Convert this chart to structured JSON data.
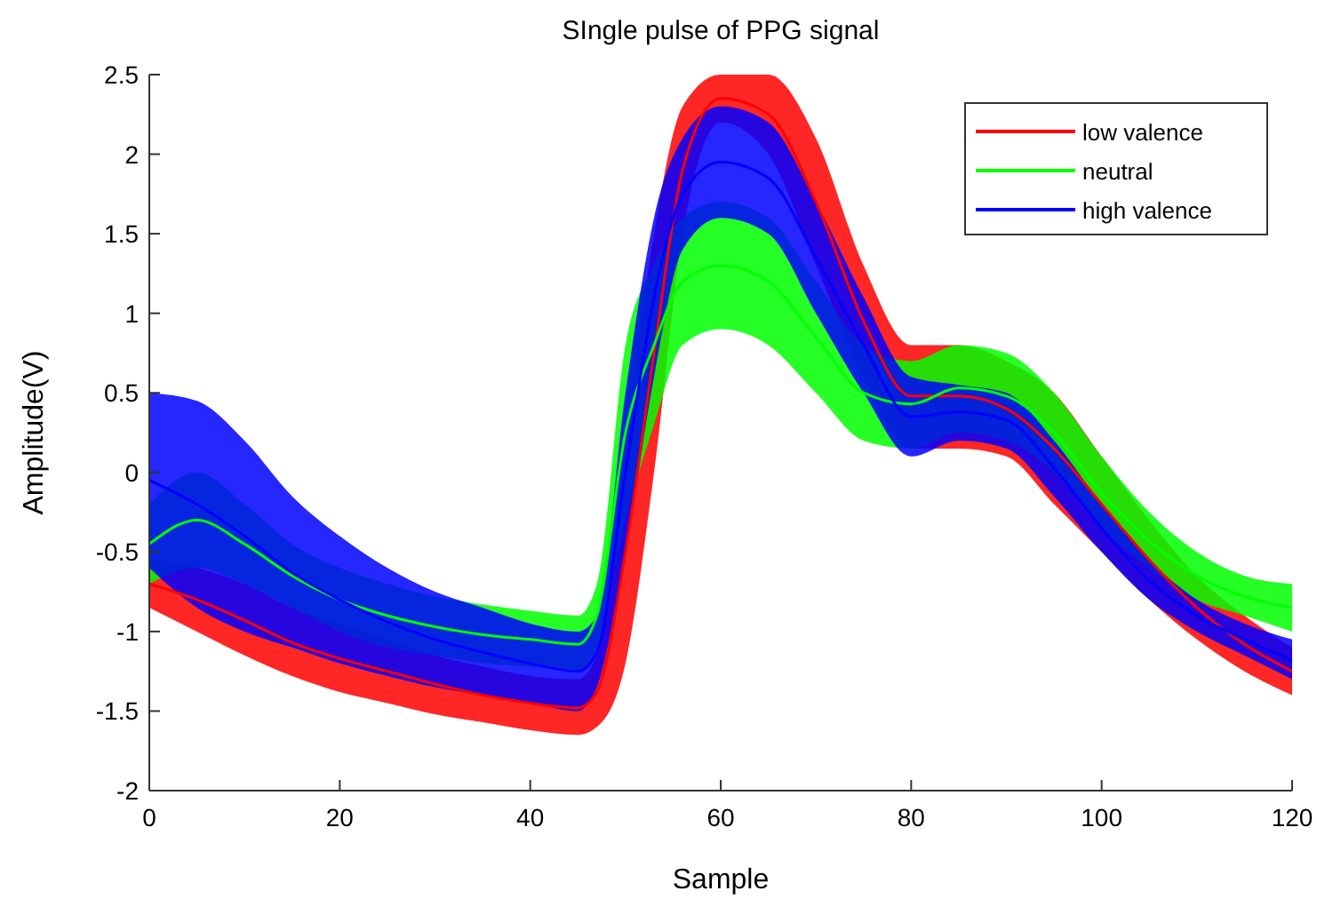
{
  "chart_data": {
    "type": "line",
    "title": "SIngle pulse of PPG signal",
    "xlabel": "Sample",
    "ylabel": "Amplitude(V)",
    "x": [
      0,
      5,
      10,
      15,
      20,
      25,
      30,
      35,
      40,
      45,
      47,
      50,
      53,
      56,
      60,
      65,
      70,
      75,
      80,
      85,
      90,
      95,
      100,
      105,
      110,
      115,
      120
    ],
    "xlim": [
      0,
      120
    ],
    "xticks": [
      0,
      20,
      40,
      60,
      80,
      100,
      120
    ],
    "ylim": [
      -2,
      2.5
    ],
    "yticks": [
      -2,
      -1.5,
      -1,
      -0.5,
      0,
      0.5,
      1,
      1.5,
      2,
      2.5
    ],
    "grid": false,
    "legend": "top right",
    "series": [
      {
        "name": "low valence",
        "color": "#ff0000",
        "values": [
          -0.7,
          -0.8,
          -0.93,
          -1.07,
          -1.17,
          -1.25,
          -1.33,
          -1.4,
          -1.45,
          -1.48,
          -1.38,
          -0.5,
          0.75,
          1.9,
          2.35,
          2.25,
          1.7,
          0.95,
          0.48,
          0.48,
          0.4,
          0.15,
          -0.2,
          -0.55,
          -0.85,
          -1.08,
          -1.25
        ],
        "lower": [
          -0.85,
          -1.0,
          -1.15,
          -1.28,
          -1.38,
          -1.45,
          -1.52,
          -1.57,
          -1.62,
          -1.65,
          -1.6,
          -1.2,
          0.0,
          1.5,
          2.2,
          2.0,
          1.3,
          0.6,
          0.15,
          0.15,
          0.1,
          -0.2,
          -0.5,
          -0.8,
          -1.05,
          -1.25,
          -1.4
        ],
        "upper": [
          -0.55,
          -0.6,
          -0.7,
          -0.85,
          -0.95,
          -1.05,
          -1.15,
          -1.22,
          -1.28,
          -1.3,
          -1.15,
          0.2,
          1.5,
          2.3,
          2.5,
          2.5,
          2.1,
          1.3,
          0.8,
          0.8,
          0.7,
          0.5,
          0.1,
          -0.3,
          -0.65,
          -0.9,
          -1.1
        ]
      },
      {
        "name": "neutral",
        "color": "#00ff00",
        "values": [
          -0.45,
          -0.3,
          -0.45,
          -0.65,
          -0.8,
          -0.9,
          -0.97,
          -1.02,
          -1.05,
          -1.08,
          -0.9,
          0.25,
          0.8,
          1.2,
          1.3,
          1.2,
          0.85,
          0.5,
          0.43,
          0.53,
          0.48,
          0.25,
          -0.13,
          -0.43,
          -0.65,
          -0.78,
          -0.85
        ],
        "lower": [
          -0.7,
          -0.6,
          -0.7,
          -0.85,
          -1.0,
          -1.1,
          -1.15,
          -1.2,
          -1.22,
          -1.25,
          -1.1,
          -0.3,
          0.3,
          0.8,
          0.9,
          0.8,
          0.5,
          0.2,
          0.15,
          0.25,
          0.2,
          0.0,
          -0.35,
          -0.6,
          -0.8,
          -0.9,
          -1.0
        ],
        "upper": [
          -0.2,
          0.0,
          -0.2,
          -0.45,
          -0.6,
          -0.7,
          -0.78,
          -0.83,
          -0.87,
          -0.9,
          -0.7,
          0.8,
          1.3,
          1.6,
          1.7,
          1.6,
          1.2,
          0.8,
          0.7,
          0.8,
          0.75,
          0.5,
          0.1,
          -0.25,
          -0.5,
          -0.65,
          -0.7
        ]
      },
      {
        "name": "high valence",
        "color": "#0000ff",
        "values": [
          -0.05,
          -0.2,
          -0.4,
          -0.63,
          -0.8,
          -0.94,
          -1.05,
          -1.13,
          -1.2,
          -1.25,
          -1.13,
          0.0,
          1.1,
          1.75,
          1.95,
          1.85,
          1.35,
          0.8,
          0.35,
          0.38,
          0.33,
          0.03,
          -0.35,
          -0.68,
          -0.9,
          -1.05,
          -1.18
        ],
        "lower": [
          -0.6,
          -0.85,
          -1.0,
          -1.1,
          -1.2,
          -1.28,
          -1.35,
          -1.4,
          -1.45,
          -1.5,
          -1.35,
          -0.5,
          0.6,
          1.4,
          1.6,
          1.5,
          1.0,
          0.5,
          0.1,
          0.2,
          0.15,
          -0.15,
          -0.5,
          -0.8,
          -1.0,
          -1.15,
          -1.3
        ],
        "upper": [
          0.5,
          0.45,
          0.2,
          -0.15,
          -0.4,
          -0.6,
          -0.75,
          -0.85,
          -0.95,
          -1.0,
          -0.9,
          0.5,
          1.6,
          2.1,
          2.3,
          2.2,
          1.7,
          1.1,
          0.6,
          0.55,
          0.5,
          0.2,
          -0.2,
          -0.55,
          -0.8,
          -0.95,
          -1.05
        ]
      }
    ]
  }
}
